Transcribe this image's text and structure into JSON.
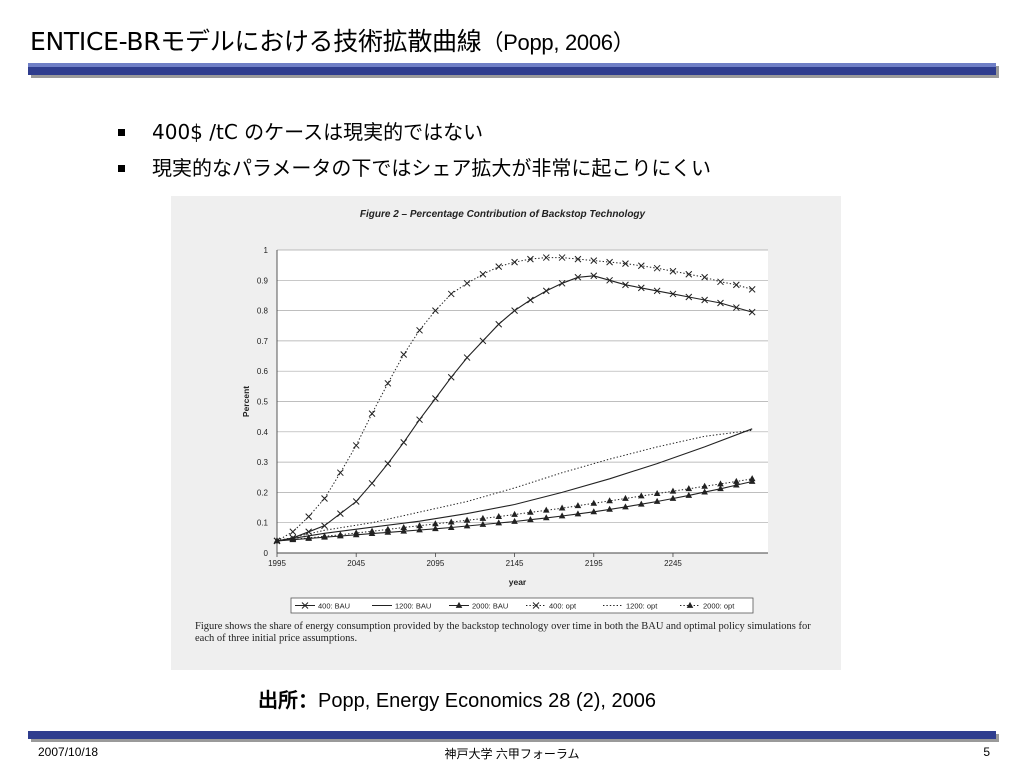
{
  "slide": {
    "title_main": "ENTICE-BRモデルにおける技術拡散曲線",
    "title_sub": "（Popp, 2006）",
    "accent_color": "#2f3d8e",
    "bullets": [
      "400$ /tC のケースは現実的ではない",
      "現実的なパラメータの下ではシェア拡大が非常に起こりにくい"
    ],
    "source_label": "出所：",
    "source_text": "Popp, Energy Economics 28 (2), 2006",
    "footer_date": "2007/10/18",
    "footer_center": "神戸大学 六甲フォーラム",
    "footer_page": "5"
  },
  "figure": {
    "caption": "Figure shows the share of energy consumption provided by the backstop technology over time in both the BAU and optimal policy simulations for each of three initial price assumptions."
  },
  "chart_data": {
    "type": "line",
    "title": "Figure 2 – Percentage Contribution of Backstop Technology",
    "xlabel": "year",
    "ylabel": "Percent",
    "xlim": [
      1995,
      2305
    ],
    "ylim": [
      0,
      1
    ],
    "x_ticks": [
      1995,
      2045,
      2095,
      2145,
      2195,
      2245
    ],
    "y_ticks": [
      0,
      0.1,
      0.2,
      0.3,
      0.4,
      0.5,
      0.6,
      0.7,
      0.8,
      0.9,
      1
    ],
    "grid": true,
    "legend_position": "bottom",
    "series": [
      {
        "name": "400: BAU",
        "marker": "x",
        "dash": "solid",
        "x": [
          1995,
          2005,
          2015,
          2025,
          2035,
          2045,
          2055,
          2065,
          2075,
          2085,
          2095,
          2105,
          2115,
          2125,
          2135,
          2145,
          2155,
          2165,
          2175,
          2185,
          2195,
          2205,
          2215,
          2225,
          2235,
          2245,
          2255,
          2265,
          2275,
          2285,
          2295
        ],
        "y": [
          0.04,
          0.05,
          0.07,
          0.09,
          0.13,
          0.17,
          0.23,
          0.295,
          0.365,
          0.44,
          0.51,
          0.58,
          0.645,
          0.7,
          0.755,
          0.8,
          0.835,
          0.865,
          0.89,
          0.91,
          0.915,
          0.9,
          0.885,
          0.875,
          0.865,
          0.855,
          0.845,
          0.835,
          0.825,
          0.81,
          0.795
        ]
      },
      {
        "name": "1200: BAU",
        "marker": "none",
        "dash": "solid",
        "x": [
          1995,
          2025,
          2055,
          2085,
          2115,
          2145,
          2175,
          2205,
          2235,
          2265,
          2295
        ],
        "y": [
          0.04,
          0.065,
          0.085,
          0.105,
          0.13,
          0.16,
          0.2,
          0.245,
          0.295,
          0.35,
          0.41
        ]
      },
      {
        "name": "2000: BAU",
        "marker": "triangle",
        "dash": "solid",
        "x": [
          1995,
          2005,
          2015,
          2025,
          2035,
          2045,
          2055,
          2065,
          2075,
          2085,
          2095,
          2105,
          2115,
          2125,
          2135,
          2145,
          2155,
          2165,
          2175,
          2185,
          2195,
          2205,
          2215,
          2225,
          2235,
          2245,
          2255,
          2265,
          2275,
          2285,
          2295
        ],
        "y": [
          0.04,
          0.044,
          0.048,
          0.052,
          0.056,
          0.06,
          0.064,
          0.068,
          0.072,
          0.076,
          0.08,
          0.084,
          0.089,
          0.094,
          0.099,
          0.104,
          0.11,
          0.116,
          0.122,
          0.129,
          0.136,
          0.144,
          0.152,
          0.161,
          0.17,
          0.18,
          0.19,
          0.201,
          0.212,
          0.224,
          0.236
        ]
      },
      {
        "name": "400: opt",
        "marker": "x",
        "dash": "dotted",
        "x": [
          1995,
          2005,
          2015,
          2025,
          2035,
          2045,
          2055,
          2065,
          2075,
          2085,
          2095,
          2105,
          2115,
          2125,
          2135,
          2145,
          2155,
          2165,
          2175,
          2185,
          2195,
          2205,
          2215,
          2225,
          2235,
          2245,
          2255,
          2265,
          2275,
          2285,
          2295
        ],
        "y": [
          0.04,
          0.07,
          0.12,
          0.18,
          0.265,
          0.355,
          0.46,
          0.56,
          0.655,
          0.735,
          0.8,
          0.855,
          0.89,
          0.92,
          0.945,
          0.96,
          0.97,
          0.975,
          0.975,
          0.97,
          0.965,
          0.96,
          0.955,
          0.948,
          0.94,
          0.93,
          0.92,
          0.91,
          0.895,
          0.885,
          0.87
        ]
      },
      {
        "name": "1200: opt",
        "marker": "none",
        "dash": "dotted",
        "x": [
          1995,
          2025,
          2055,
          2085,
          2115,
          2145,
          2175,
          2205,
          2235,
          2265,
          2295
        ],
        "y": [
          0.04,
          0.075,
          0.1,
          0.135,
          0.17,
          0.215,
          0.265,
          0.31,
          0.35,
          0.385,
          0.405
        ]
      },
      {
        "name": "2000: opt",
        "marker": "triangle",
        "dash": "dotted",
        "x": [
          1995,
          2005,
          2015,
          2025,
          2035,
          2045,
          2055,
          2065,
          2075,
          2085,
          2095,
          2105,
          2115,
          2125,
          2135,
          2145,
          2155,
          2165,
          2175,
          2185,
          2195,
          2205,
          2215,
          2225,
          2235,
          2245,
          2255,
          2265,
          2275,
          2285,
          2295
        ],
        "y": [
          0.04,
          0.045,
          0.05,
          0.055,
          0.06,
          0.066,
          0.072,
          0.078,
          0.084,
          0.09,
          0.096,
          0.102,
          0.108,
          0.114,
          0.12,
          0.127,
          0.134,
          0.141,
          0.148,
          0.156,
          0.164,
          0.172,
          0.18,
          0.188,
          0.196,
          0.204,
          0.212,
          0.22,
          0.228,
          0.236,
          0.245
        ]
      }
    ]
  }
}
